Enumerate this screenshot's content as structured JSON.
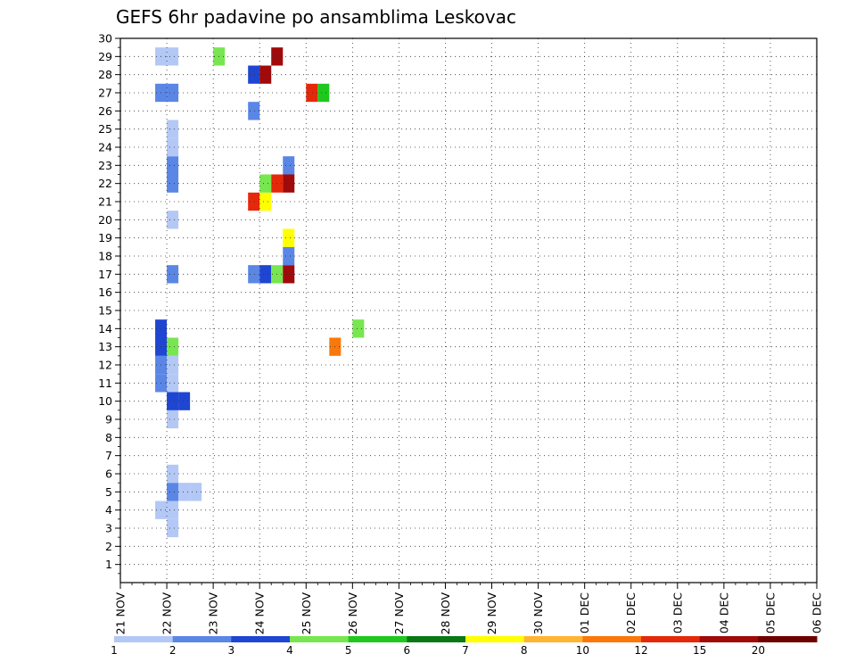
{
  "chart_data": {
    "type": "heatmap",
    "title": "GEFS 6hr padavine po ansamblima Leskovac",
    "x_tick_labels": [
      "21 NOV",
      "22 NOV",
      "23 NOV",
      "24 NOV",
      "25 NOV",
      "26 NOV",
      "27 NOV",
      "28 NOV",
      "29 NOV",
      "30 NOV",
      "01 DEC",
      "02 DEC",
      "03 DEC",
      "04 DEC",
      "05 DEC",
      "06 DEC"
    ],
    "y_tick_labels": [
      "1",
      "2",
      "3",
      "4",
      "5",
      "6",
      "7",
      "8",
      "9",
      "10",
      "11",
      "12",
      "13",
      "14",
      "15",
      "16",
      "17",
      "18",
      "19",
      "20",
      "21",
      "22",
      "23",
      "24",
      "25",
      "26",
      "27",
      "28",
      "29",
      "30"
    ],
    "ylim": [
      0,
      30
    ],
    "time_steps_per_day": 4,
    "grid": true,
    "legend_placement": "bottom",
    "legend": {
      "labels": [
        "1",
        "2",
        "3",
        "4",
        "5",
        "6",
        "7",
        "8",
        "10",
        "12",
        "15",
        "20"
      ],
      "colors": [
        "#b4c8f6",
        "#5a86e6",
        "#1e46d2",
        "#78e650",
        "#1ec81e",
        "#0a7814",
        "#ffff00",
        "#ffb432",
        "#fa780a",
        "#e6280a",
        "#a00a0a",
        "#6e0000"
      ]
    },
    "colors": {
      "1": "#b4c8f6",
      "2": "#5a86e6",
      "3": "#1e46d2",
      "4": "#78e650",
      "5": "#1ec81e",
      "6": "#0a7814",
      "7": "#ffff00",
      "8": "#ffb432",
      "9": "#fa780a",
      "A": "#e6280a",
      "B": "#a00a0a",
      "C": "#6e0000"
    },
    "encoding_key": "Each row string lists 6-hour steps from 21 NOV 00Z; '.' = below 1, '1'..'9','A','B','C' = precipitation class index into legend",
    "rows": {
      "30": "..........................................",
      "29": "...11...4....B................",
      "28": "...........3B.........",
      "27": "...22...........A5....",
      "26": "...........2",
      "25": "....1...............",
      "24": "....1...............",
      "23": "....2.........2",
      "22": "....2.......4AB",
      "21": "...........A7",
      "20": "....1.........",
      "19": "..............7",
      "18": "..............2",
      "17": "....2......234B",
      "16": "...............",
      "15": "...............",
      "14": "...3................4",
      "13": "...34.............9",
      "12": "...21..........",
      "11": "...21...........",
      "10": "....33..........",
      "9": "....1...........",
      "8": "...............",
      "7": "...............",
      "6": "....1...........",
      "5": "....211.........",
      "4": "...11...........",
      "3": "....1...........",
      "2": "...............",
      "1": "..............."
    }
  }
}
